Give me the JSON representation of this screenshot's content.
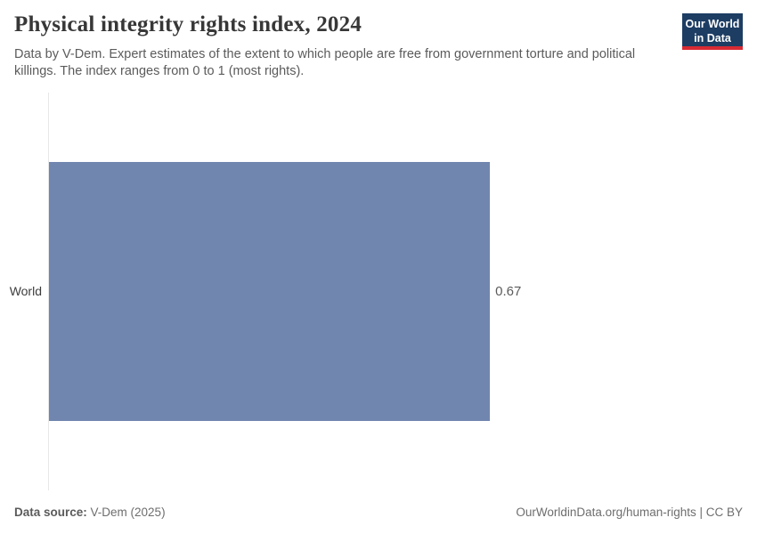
{
  "header": {
    "title": "Physical integrity rights index, 2024",
    "subtitle": "Data by V-Dem. Expert estimates of the extent to which people are free from government torture and political killings. The index ranges from 0 to 1 (most rights).",
    "logo": {
      "line1": "Our World",
      "line2": "in Data",
      "bg_color": "#1d3d63",
      "accent_color": "#d92a33"
    }
  },
  "chart_data": {
    "type": "bar",
    "orientation": "horizontal",
    "title": "Physical integrity rights index, 2024",
    "categories": [
      "World"
    ],
    "values": [
      0.67
    ],
    "value_labels": [
      "0.67"
    ],
    "xlim": [
      0,
      1
    ],
    "bar_color": "#7186ae",
    "grid": false,
    "legend": false,
    "axis_line_color": "#e7e7e7"
  },
  "footer": {
    "source_label": "Data source:",
    "source_value": " V-Dem (2025)",
    "credit": "OurWorldinData.org/human-rights | CC BY"
  }
}
